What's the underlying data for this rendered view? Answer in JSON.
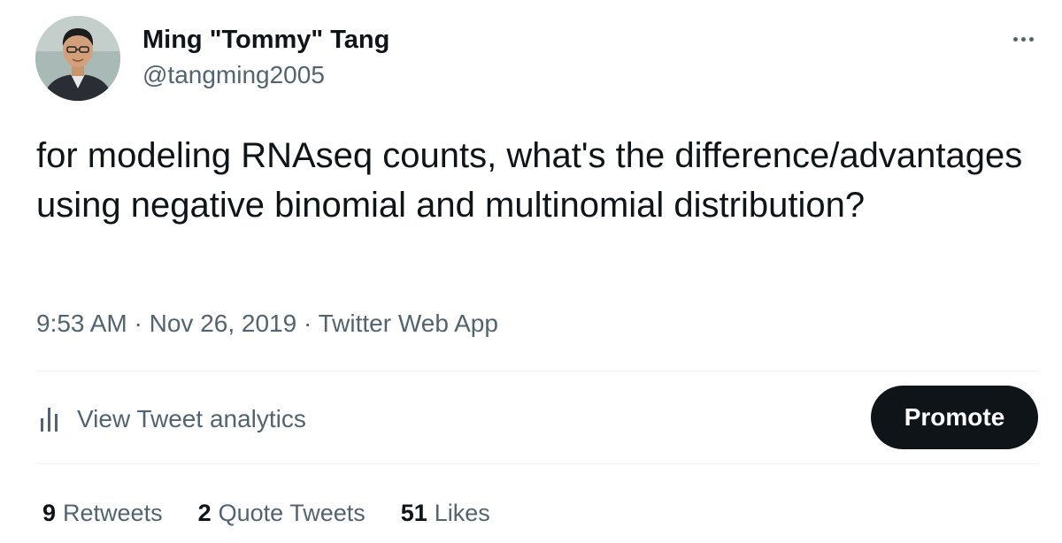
{
  "author": {
    "display_name": "Ming \"Tommy\" Tang",
    "handle": "@tangming2005"
  },
  "tweet": {
    "text": "for modeling RNAseq counts, what's the difference/advantages using negative binomial and multinomial distribution?",
    "time": "9:53 AM",
    "date": "Nov 26, 2019",
    "source": "Twitter Web App",
    "separator": "·"
  },
  "actions": {
    "analytics_label": "View Tweet analytics",
    "analytics_icon": "bar-chart-icon",
    "promote_label": "Promote",
    "more_icon": "more-horizontal-icon"
  },
  "stats": {
    "retweets": {
      "count": "9",
      "label": "Retweets"
    },
    "quote_tweets": {
      "count": "2",
      "label": "Quote Tweets"
    },
    "likes": {
      "count": "51",
      "label": "Likes"
    }
  },
  "colors": {
    "text_primary": "#0f1419",
    "text_secondary": "#536471",
    "divider": "#eff3f4",
    "promote_bg": "#0f1419"
  }
}
